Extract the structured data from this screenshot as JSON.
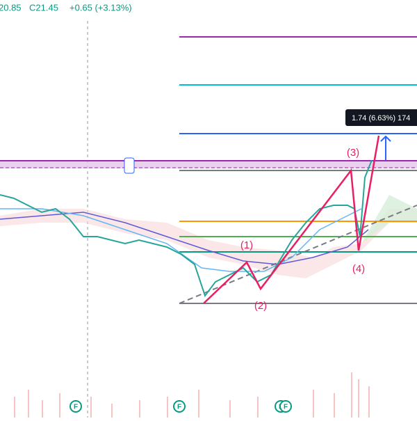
{
  "header": {
    "low": "20.85",
    "close": "C21.45",
    "change": "+0.65 (+3.13%)"
  },
  "measure_label": "1.74 (6.63%) 174",
  "waves": [
    "(1)",
    "(2)",
    "(3)",
    "(4)"
  ],
  "markers": [
    "F",
    "F",
    "F",
    "F"
  ]
}
